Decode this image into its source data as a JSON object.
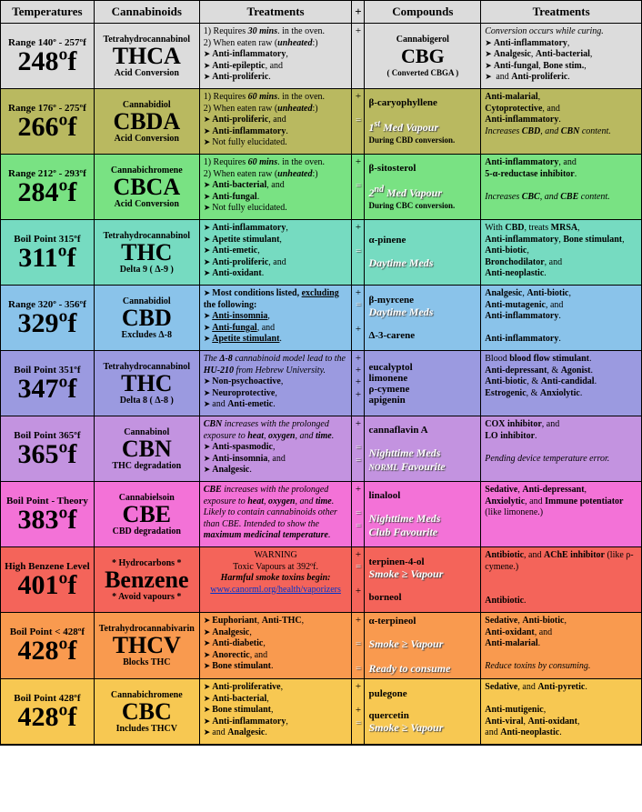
{
  "headers": {
    "c1": "Temperatures",
    "c2": "Cannabinoids",
    "c3": "Treatments",
    "cp": "+",
    "c4": "Compounds",
    "c5": "Treatments"
  },
  "rows": [
    {
      "bg": "#dcdcdc",
      "range": "Range 140º - 257ºf",
      "temp": "248ºf",
      "cann_top": "Tetrahydrocannabinol",
      "cann": "THCA",
      "cann_sub": "Acid Conversion",
      "treat": [
        "1) Requires <b><i>30 mins</i></b>. in the oven.",
        "2) When eaten raw (<b><i>unheated</i></b>:)",
        "BL<b>Anti-inflammatory</b>,",
        "BL<b>Anti-epileptic</b>, and",
        "BL<b>Anti-proliferic</b>."
      ],
      "plus": [
        "+"
      ],
      "comp": {
        "top": "Cannabigerol",
        "big": "CBG",
        "sub": "( Converted CBGA )"
      },
      "t2": [
        "<i>Conversion occurs while curing.</i>",
        "BL<b>Anti-inflammatory</b>,",
        "BL<b>Analgesic</b>, <b>Anti-bacterial</b>,",
        "BL<b>Anti-fungal</b>, <b>Bone stim.</b>,",
        "BL and <b>Anti-proliferic</b>."
      ]
    },
    {
      "bg": "#b9b960",
      "range": "Range 176º - 275ºf",
      "temp": "266ºf",
      "cann_top": "Cannabidiol",
      "cann": "CBDA",
      "cann_sub": "Acid Conversion",
      "treat": [
        "1) Requires <b><i>60 mins</i></b>. in the oven.",
        "2) When eaten raw (<b><i>unheated</i></b>:)",
        "BL<b>Anti-proliferic</b>, and",
        "BL<b>Anti-inflammatory</b>.",
        "BLNot fully elucidated."
      ],
      "plus": [
        "+",
        "",
        "="
      ],
      "comp": {
        "items": [
          "<b>β-caryophyllene</b>",
          "",
          "<span class='lbl'>1<sup>st</sup> Med Vapour</span>",
          "<b style='font-size:9px'>During CBD conversion.</b>"
        ]
      },
      "t2": [
        "<b>Anti-malarial</b>,",
        "<b>Cytoprotective</b>, and",
        "<b>Anti-inflammatory</b>.",
        "<i>Increases <b>CBD</b>, and <b>CBN</b> content.</i>"
      ]
    },
    {
      "bg": "#79e283",
      "range": "Range 212º - 293ºf",
      "temp": "284ºf",
      "cann_top": "Cannabichromene",
      "cann": "CBCA",
      "cann_sub": "Acid Conversion",
      "treat": [
        "1) Requires <b><i>60 mins</i></b>. in the oven.",
        "2) When eaten raw (<b><i>unheated</i></b>:)",
        "BL<b>Anti-bacterial</b>, and",
        "BL<b>Anti-fungal</b>.",
        "BLNot fully elucidated."
      ],
      "plus": [
        "+",
        "",
        "="
      ],
      "comp": {
        "items": [
          "<b>β-sitosterol</b>",
          "",
          "<span class='lbl'>2<sup>nd</sup> Med Vapour</span>",
          "<b style='font-size:9px'>During CBC conversion.</b>"
        ]
      },
      "t2": [
        "<b>Anti-inflammatory</b>, and",
        "<b>5-α-reductase inhibitor</b>.",
        "",
        "<i>Increases <b>CBC</b>, and <b>CBE</b> content.</i>"
      ]
    },
    {
      "bg": "#76dbc1",
      "range": "Boil Point 315ºf",
      "temp": "311ºf",
      "cann_top": "Tetrahydrocannabinol",
      "cann": "THC",
      "cann_sub": "Delta 9 ( Δ-9 )",
      "treat": [
        "BL<b>Anti-inflammatory</b>,",
        "BL<b>Apetite stimulant</b>,",
        "BL<b>Anti-emetic</b>,",
        "BL<b>Anti-proliferic</b>, and",
        "BL<b>Anti-oxidant</b>."
      ],
      "plus": [
        "+",
        "",
        "="
      ],
      "comp": {
        "items": [
          "<b>α-pinene</b>",
          "",
          "<span class='lbl'>Daytime Meds</span>"
        ]
      },
      "t2": [
        "With <b>CBD</b>, treats <b>MRSA</b>,",
        "<b>Anti-inflammatory</b>, <b>Bone stimulant</b>, <b>Anti-biotic</b>,",
        "<b>Bronchodilator</b>, and",
        "<b>Anti-neoplastic</b>."
      ]
    },
    {
      "bg": "#8ac3ea",
      "range": "Range 320º - 356ºf",
      "temp": "329ºf",
      "cann_top": "Cannabidiol",
      "cann": "CBD",
      "cann_sub": "Excludes Δ-8",
      "treat": [
        "BL<b>Most conditions listed, <u>excluding</u> the following:</b>",
        "BL<b><u>Anti-insomnia</u></b>,",
        "BL<b><u>Anti-fungal</u></b>, and",
        "BL<b><u>Apetite stimulant</u></b>."
      ],
      "plus": [
        "+",
        "=",
        "",
        "+"
      ],
      "comp": {
        "items": [
          "<b>β-myrcene</b>",
          "<span class='lbl'>Daytime Meds</span>",
          "",
          "<b>Δ-3-carene</b>"
        ]
      },
      "t2": [
        "<b>Analgesic</b>, <b>Anti-biotic</b>,",
        "<b>Anti-mutagenic</b>, and",
        "<b>Anti-inflammatory</b>.",
        "",
        "<b>Anti-inflammatory</b>."
      ]
    },
    {
      "bg": "#9b9ae0",
      "range": "Boil Point 351ºf",
      "temp": "347ºf",
      "cann_top": "Tetrahydrocannabinol",
      "cann": "THC",
      "cann_sub": "Delta 8 ( Δ-8 )",
      "treat": [
        "<i>The <b>Δ-8</b> cannabinoid model lead to the <b>HU-210</b> from Hebrew University.</i>",
        "BL<b>Non-psychoactive</b>,",
        "BL<b>Neuroprotective</b>,",
        "BLand <b>Anti-emetic</b>."
      ],
      "plus": [
        "+",
        "+",
        "+",
        "+"
      ],
      "comp": {
        "items": [
          "<b>eucalyptol</b>",
          "<b>limonene</b>",
          "<b>ρ-cymene</b>",
          "<b>apigenin</b>"
        ]
      },
      "t2": [
        "Blood <b>blood flow stimulant</b>.",
        "<b>Anti-depressant</b>, & <b>Agonist</b>.",
        "<b>Anti-biotic</b>, & <b>Anti-candidal</b>.",
        "<b>Estrogenic</b>, & <b>Anxiolytic</b>."
      ]
    },
    {
      "bg": "#c393e0",
      "range": "Boil Point 365ºf",
      "temp": "365ºf",
      "cann_top": "Cannabinol",
      "cann": "CBN",
      "cann_sub": "THC degradation",
      "treat": [
        "<i><b>CBN</b> increases with the prolonged exposure to <b>heat</b>, <b>oxygen</b>, and <b>time</b>.</i>",
        "BL<b>Anti-spasmodic</b>,",
        "BL<b>Anti-insomnia</b>, and",
        "BL<b>Analgesic</b>."
      ],
      "plus": [
        "+",
        "",
        "=",
        "="
      ],
      "comp": {
        "items": [
          "<b>cannaflavin A</b>",
          "",
          "<span class='lbl'>Nighttime Meds</span>",
          "<span class='lbl'><span style=\"font-size:9px\">NORML</span> Favourite</span>"
        ]
      },
      "t2": [
        "<b>COX inhibitor</b>, and",
        "<b>LO inhibitor</b>.",
        "",
        "<i>Pending device temperature error.</i>"
      ]
    },
    {
      "bg": "#f372d7",
      "range": "Boil Point - Theory",
      "temp": "383ºf",
      "cann_top": "Cannabielsoin",
      "cann": "CBE",
      "cann_sub": "CBD degradation",
      "treat": [
        "<i><b>CBE</b> increases with the prolonged exposure to <b>heat</b>, <b>oxygen</b>, and <b>time</b>.</i>",
        "<i>Likely to contain cannabinoids other than CBE. Intended to show the <b>maximum medicinal temperature</b>.</i>"
      ],
      "plus": [
        "+",
        "",
        "=",
        "="
      ],
      "comp": {
        "items": [
          "<b>linalool</b>",
          "",
          "<span class='lbl'>Nighttime Meds</span>",
          "<span class='lbl'>Club Favourite</span>"
        ]
      },
      "t2": [
        "<b>Sedative</b>, <b>Anti-depressant</b>,",
        "<b>Anxiolytic</b>, and <b>Immune potentiator</b> (like limonene.)"
      ]
    },
    {
      "bg": "#f4645a",
      "range": "High Benzene Level",
      "temp": "401ºf",
      "cann_top": "* Hydrocarbons *",
      "cann": "Benzene",
      "cann_sub": "* Avoid vapours *",
      "treat": [
        "WARN"
      ],
      "plus": [
        "+",
        "=",
        "",
        "+"
      ],
      "comp": {
        "items": [
          "<b>terpinen-4-ol</b>",
          "<span class='lbl'>Smoke ≥ Vapour</span>",
          "",
          "<b>borneol</b>"
        ]
      },
      "t2": [
        "<b>Antibiotic</b>, and <b>AChE inhibitor</b> (like ρ-cymene.)",
        "",
        "",
        "<b>Antibiotic</b>."
      ]
    },
    {
      "bg": "#f99a4f",
      "range": "Boil Point < 428ºf",
      "temp": "428ºf",
      "cann_top": "Tetrahydrocannabivarin",
      "cann": "THCV",
      "cann_sub": "Blocks THC",
      "treat": [
        "BL<b>Euphoriant</b>, <b>Anti-THC</b>,",
        "BL<b>Analgesic</b>,",
        "BL<b>Anti-diabetic</b>,",
        "BL<b>Anorectic</b>, and",
        "BL<b>Bone stimulant</b>."
      ],
      "plus": [
        "+",
        "",
        "=",
        "",
        "="
      ],
      "comp": {
        "items": [
          "<b>α-terpineol</b>",
          "",
          "<span class='lbl'>Smoke ≥ Vapour</span>",
          "",
          "<span class='lbl'>Ready to consume</span>"
        ]
      },
      "t2": [
        "<b>Sedative</b>, <b>Anti-biotic</b>,",
        "<b>Anti-oxidant</b>, and",
        "<b>Anti-malarial</b>.",
        "",
        "<i>Reduce toxins by consuming.</i>"
      ]
    },
    {
      "bg": "#f7c852",
      "range": "Boil Point 428ºf",
      "temp": "428ºf",
      "cann_top": "Cannabichromene",
      "cann": "CBC",
      "cann_sub": "Includes THCV",
      "treat": [
        "BL<b>Anti-proliferative</b>,",
        "BL<b>Anti-bacterial</b>,",
        "BL<b>Bone stimulant</b>,",
        "BL<b>Anti-inflammatory</b>,",
        "BLand <b>Analgesic</b>."
      ],
      "plus": [
        "+",
        "",
        "+",
        "="
      ],
      "comp": {
        "items": [
          "<b>pulegone</b>",
          "",
          "<b>quercetin</b>",
          "<span class='lbl'>Smoke ≥ Vapour</span>"
        ]
      },
      "t2": [
        "<b>Sedative</b>, and <b>Anti-pyretic</b>.",
        "",
        "<b>Anti-mutigenic</b>,",
        "<b>Anti-viral</b>, <b>Anti-oxidant</b>,",
        "and <b>Anti-neoplastic</b>."
      ]
    }
  ],
  "warn": {
    "t1": "WARNING",
    "t2": "Toxic Vapours at 392ºf.",
    "t3": "Harmful smoke toxins begin:",
    "link": "www.canorml.org/health/vaporizers"
  }
}
